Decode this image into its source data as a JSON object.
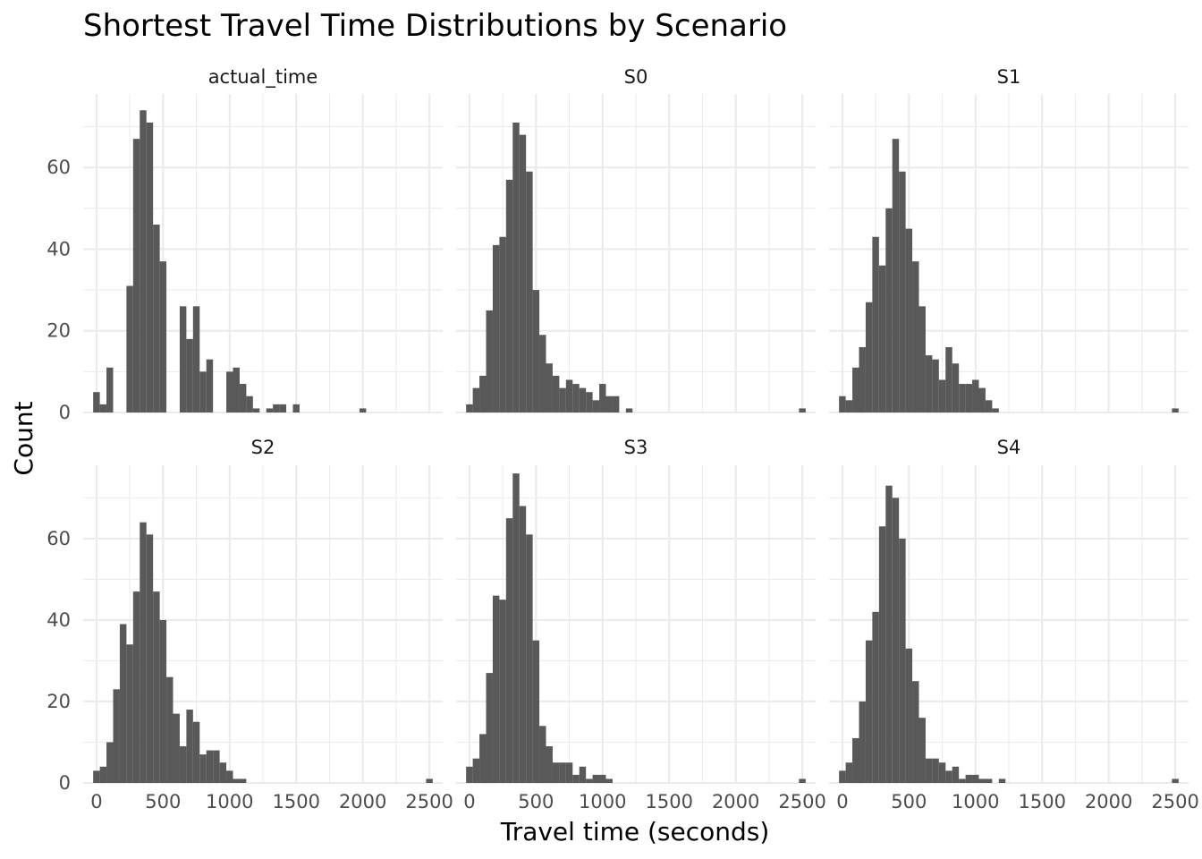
{
  "chart_data": {
    "type": "bar",
    "title": "Shortest Travel Time Distributions by Scenario",
    "xlabel": "Travel time (seconds)",
    "ylabel": "Count",
    "xlim": [
      -100,
      2600
    ],
    "ylim": [
      0,
      78
    ],
    "x_ticks": [
      0,
      500,
      1000,
      1500,
      2000,
      2500
    ],
    "y_ticks": [
      0,
      20,
      40,
      60
    ],
    "bin_width": 50,
    "grid": true,
    "bar_color": "#595959",
    "grid_color": "#ebebeb",
    "panels": [
      {
        "name": "actual_time",
        "bin_start": 0,
        "values": [
          5,
          2,
          11,
          0,
          0,
          31,
          67,
          74,
          71,
          46,
          37,
          0,
          0,
          26,
          18,
          26,
          10,
          13,
          0,
          0,
          10,
          11,
          7,
          4,
          1,
          0,
          1,
          2,
          2,
          0,
          2,
          0,
          0,
          0,
          0,
          0,
          0,
          0,
          0,
          0,
          1
        ]
      },
      {
        "name": "S0",
        "bin_start": 0,
        "values": [
          2,
          6,
          9,
          25,
          41,
          43,
          57,
          71,
          68,
          59,
          30,
          19,
          12,
          9,
          6,
          8,
          7,
          6,
          5,
          3,
          7,
          4,
          4,
          0,
          1,
          0,
          0,
          0,
          0,
          0,
          0,
          0,
          0,
          0,
          0,
          0,
          0,
          0,
          0,
          0,
          0,
          0,
          0,
          0,
          0,
          0,
          0,
          0,
          0,
          0,
          1
        ]
      },
      {
        "name": "S1",
        "bin_start": 0,
        "values": [
          4,
          3,
          11,
          16,
          27,
          43,
          36,
          50,
          67,
          59,
          45,
          37,
          26,
          14,
          13,
          8,
          16,
          12,
          7,
          7,
          8,
          6,
          3,
          1,
          0,
          0,
          0,
          0,
          0,
          0,
          0,
          0,
          0,
          0,
          0,
          0,
          0,
          0,
          0,
          0,
          0,
          0,
          0,
          0,
          0,
          0,
          0,
          0,
          0,
          0,
          1
        ]
      },
      {
        "name": "S2",
        "bin_start": 0,
        "values": [
          3,
          4,
          10,
          23,
          39,
          34,
          47,
          64,
          61,
          47,
          40,
          26,
          17,
          9,
          18,
          15,
          7,
          8,
          8,
          5,
          3,
          1,
          1,
          0,
          0,
          0,
          0,
          0,
          0,
          0,
          0,
          0,
          0,
          0,
          0,
          0,
          0,
          0,
          0,
          0,
          0,
          0,
          0,
          0,
          0,
          0,
          0,
          0,
          0,
          0,
          1
        ]
      },
      {
        "name": "S3",
        "bin_start": 0,
        "values": [
          4,
          6,
          12,
          27,
          46,
          45,
          65,
          76,
          68,
          61,
          35,
          14,
          9,
          5,
          5,
          5,
          2,
          4,
          1,
          2,
          2,
          1,
          0,
          0,
          0,
          0,
          0,
          0,
          0,
          0,
          0,
          0,
          0,
          0,
          0,
          0,
          0,
          0,
          0,
          0,
          0,
          0,
          0,
          0,
          0,
          0,
          0,
          0,
          0,
          0,
          1
        ]
      },
      {
        "name": "S4",
        "bin_start": 0,
        "values": [
          3,
          5,
          11,
          20,
          35,
          42,
          63,
          73,
          70,
          60,
          33,
          25,
          16,
          6,
          6,
          5,
          3,
          4,
          1,
          2,
          2,
          1,
          1,
          0,
          1,
          0,
          0,
          0,
          0,
          0,
          0,
          0,
          0,
          0,
          0,
          0,
          0,
          0,
          0,
          0,
          0,
          0,
          0,
          0,
          0,
          0,
          0,
          0,
          0,
          0,
          1
        ]
      }
    ]
  }
}
